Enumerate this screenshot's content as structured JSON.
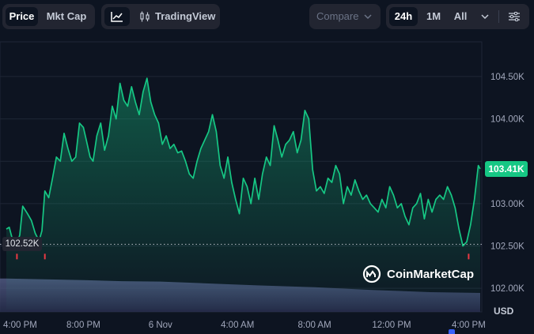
{
  "toolbar": {
    "metric_tabs": [
      {
        "label": "Price",
        "active": true
      },
      {
        "label": "Mkt Cap",
        "active": false
      }
    ],
    "tradingview_label": "TradingView",
    "compare_label": "Compare",
    "range_tabs": [
      {
        "label": "24h",
        "active": true
      },
      {
        "label": "1M",
        "active": false
      },
      {
        "label": "All",
        "active": false
      }
    ]
  },
  "watermark": "CoinMarketCap",
  "current_price_label": "103.41K",
  "open_price_label": "102.52K",
  "currency_label": "USD",
  "colors": {
    "background": "#0d1421",
    "line": "#16c784",
    "price_tag": "#16c784",
    "volume": "#5a6390",
    "marker": "#ea3943"
  },
  "chart_data": {
    "type": "area",
    "y_ticks": [
      {
        "value": 104.5,
        "label": "104.50K"
      },
      {
        "value": 104.0,
        "label": "104.00K"
      },
      {
        "value": 103.5,
        "label": ""
      },
      {
        "value": 103.0,
        "label": "103.00K"
      },
      {
        "value": 102.5,
        "label": "102.50K"
      },
      {
        "value": 102.0,
        "label": "102.00K"
      }
    ],
    "ylim": [
      101.75,
      104.9
    ],
    "x_range_hours": [
      0,
      24.6
    ],
    "x_ticks": [
      {
        "hour": 0,
        "label": "4:00 PM"
      },
      {
        "hour": 4,
        "label": "8:00 PM"
      },
      {
        "hour": 8,
        "label": "6 Nov"
      },
      {
        "hour": 12,
        "label": "4:00 AM"
      },
      {
        "hour": 16,
        "label": "8:00 AM"
      },
      {
        "hour": 20,
        "label": "12:00 PM"
      },
      {
        "hour": 24,
        "label": "4:00 PM"
      }
    ],
    "reference_price": 102.52,
    "current_price": 103.41,
    "series": [
      {
        "points": [
          [
            0.0,
            102.7
          ],
          [
            0.15,
            102.72
          ],
          [
            0.35,
            102.55
          ],
          [
            0.5,
            102.5
          ],
          [
            0.7,
            102.63
          ],
          [
            0.85,
            102.97
          ],
          [
            1.1,
            102.88
          ],
          [
            1.3,
            102.8
          ],
          [
            1.5,
            102.65
          ],
          [
            1.7,
            102.56
          ],
          [
            1.85,
            102.68
          ],
          [
            2.0,
            103.15
          ],
          [
            2.2,
            103.07
          ],
          [
            2.4,
            103.3
          ],
          [
            2.6,
            103.55
          ],
          [
            2.8,
            103.5
          ],
          [
            3.0,
            103.83
          ],
          [
            3.2,
            103.65
          ],
          [
            3.4,
            103.5
          ],
          [
            3.6,
            103.55
          ],
          [
            3.8,
            103.95
          ],
          [
            4.0,
            103.9
          ],
          [
            4.15,
            103.75
          ],
          [
            4.35,
            103.55
          ],
          [
            4.5,
            103.5
          ],
          [
            4.7,
            103.8
          ],
          [
            4.9,
            103.95
          ],
          [
            5.1,
            103.63
          ],
          [
            5.3,
            103.8
          ],
          [
            5.5,
            104.15
          ],
          [
            5.7,
            104.0
          ],
          [
            5.9,
            104.42
          ],
          [
            6.1,
            104.22
          ],
          [
            6.3,
            104.15
          ],
          [
            6.5,
            104.38
          ],
          [
            6.7,
            104.2
          ],
          [
            6.9,
            104.05
          ],
          [
            7.1,
            104.32
          ],
          [
            7.3,
            104.48
          ],
          [
            7.5,
            104.2
          ],
          [
            7.7,
            104.05
          ],
          [
            7.9,
            103.95
          ],
          [
            8.1,
            103.7
          ],
          [
            8.3,
            103.8
          ],
          [
            8.5,
            103.65
          ],
          [
            8.7,
            103.7
          ],
          [
            8.9,
            103.6
          ],
          [
            9.1,
            103.62
          ],
          [
            9.3,
            103.5
          ],
          [
            9.5,
            103.35
          ],
          [
            9.7,
            103.3
          ],
          [
            9.9,
            103.5
          ],
          [
            10.1,
            103.65
          ],
          [
            10.3,
            103.75
          ],
          [
            10.5,
            103.85
          ],
          [
            10.7,
            104.05
          ],
          [
            10.9,
            103.85
          ],
          [
            11.1,
            103.45
          ],
          [
            11.3,
            103.3
          ],
          [
            11.5,
            103.55
          ],
          [
            11.7,
            103.25
          ],
          [
            11.9,
            103.05
          ],
          [
            12.1,
            102.88
          ],
          [
            12.3,
            103.3
          ],
          [
            12.5,
            103.2
          ],
          [
            12.7,
            103.0
          ],
          [
            12.9,
            103.3
          ],
          [
            13.1,
            103.05
          ],
          [
            13.3,
            103.35
          ],
          [
            13.5,
            103.55
          ],
          [
            13.7,
            103.45
          ],
          [
            13.9,
            103.92
          ],
          [
            14.1,
            103.75
          ],
          [
            14.3,
            103.55
          ],
          [
            14.5,
            103.7
          ],
          [
            14.7,
            103.75
          ],
          [
            14.9,
            103.85
          ],
          [
            15.1,
            103.6
          ],
          [
            15.3,
            103.75
          ],
          [
            15.5,
            104.1
          ],
          [
            15.7,
            104.0
          ],
          [
            15.9,
            103.4
          ],
          [
            16.1,
            103.15
          ],
          [
            16.3,
            103.2
          ],
          [
            16.5,
            103.12
          ],
          [
            16.7,
            103.3
          ],
          [
            16.9,
            103.25
          ],
          [
            17.1,
            103.45
          ],
          [
            17.3,
            103.35
          ],
          [
            17.5,
            103.0
          ],
          [
            17.7,
            103.2
          ],
          [
            17.9,
            103.1
          ],
          [
            18.1,
            103.28
          ],
          [
            18.3,
            103.15
          ],
          [
            18.5,
            103.05
          ],
          [
            18.7,
            103.1
          ],
          [
            18.9,
            103.0
          ],
          [
            19.1,
            102.95
          ],
          [
            19.3,
            102.9
          ],
          [
            19.5,
            103.05
          ],
          [
            19.7,
            102.95
          ],
          [
            19.9,
            103.2
          ],
          [
            20.1,
            103.1
          ],
          [
            20.3,
            102.95
          ],
          [
            20.5,
            103.0
          ],
          [
            20.7,
            102.85
          ],
          [
            20.9,
            102.75
          ],
          [
            21.1,
            102.95
          ],
          [
            21.3,
            103.0
          ],
          [
            21.5,
            103.12
          ],
          [
            21.7,
            102.82
          ],
          [
            21.9,
            103.05
          ],
          [
            22.1,
            102.9
          ],
          [
            22.3,
            103.05
          ],
          [
            22.5,
            103.1
          ],
          [
            22.7,
            103.05
          ],
          [
            22.9,
            103.2
          ],
          [
            23.1,
            103.1
          ],
          [
            23.3,
            102.95
          ],
          [
            23.5,
            102.7
          ],
          [
            23.7,
            102.5
          ],
          [
            23.9,
            102.55
          ],
          [
            24.1,
            102.75
          ],
          [
            24.3,
            103.05
          ],
          [
            24.5,
            103.45
          ],
          [
            24.6,
            103.41
          ]
        ]
      }
    ],
    "volume": [
      [
        0,
        0.88
      ],
      [
        2,
        0.86
      ],
      [
        4,
        0.84
      ],
      [
        6,
        0.81
      ],
      [
        8,
        0.8
      ],
      [
        9.5,
        0.77
      ],
      [
        11,
        0.74
      ],
      [
        13,
        0.7
      ],
      [
        16,
        0.65
      ],
      [
        19,
        0.58
      ],
      [
        22,
        0.52
      ],
      [
        24.6,
        0.5
      ]
    ],
    "red_markers_hours": [
      0.55,
      2.0,
      24.0
    ]
  }
}
